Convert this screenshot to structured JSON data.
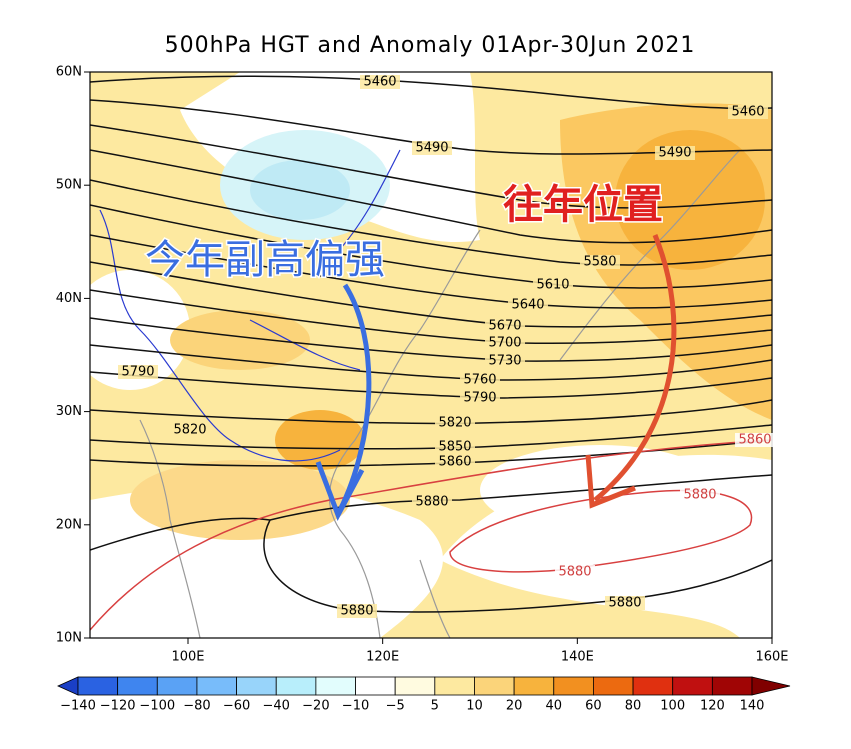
{
  "title": "500hPa HGT and Anomaly 01Apr-30Jun 2021",
  "lat_labels": [
    "60N",
    "50N",
    "40N",
    "30N",
    "20N",
    "10N"
  ],
  "lon_labels": [
    "100E",
    "120E",
    "140E",
    "160E"
  ],
  "contour_labels": [
    "5460",
    "5460",
    "5490",
    "5490",
    "5580",
    "5610",
    "5640",
    "5670",
    "5700",
    "5730",
    "5760",
    "5790",
    "5820",
    "5850",
    "5860",
    "5880",
    "5880",
    "5880",
    "5790",
    "5820"
  ],
  "red_contour_labels": [
    "5860",
    "5880",
    "5880"
  ],
  "annotations": {
    "past_position": "往年位置",
    "this_year": "今年副高偏强"
  },
  "colorbar_labels": [
    "−140",
    "−120",
    "−100",
    "−80",
    "−60",
    "−40",
    "−20",
    "−10",
    "−5",
    "5",
    "10",
    "20",
    "40",
    "60",
    "80",
    "100",
    "120",
    "140"
  ]
}
